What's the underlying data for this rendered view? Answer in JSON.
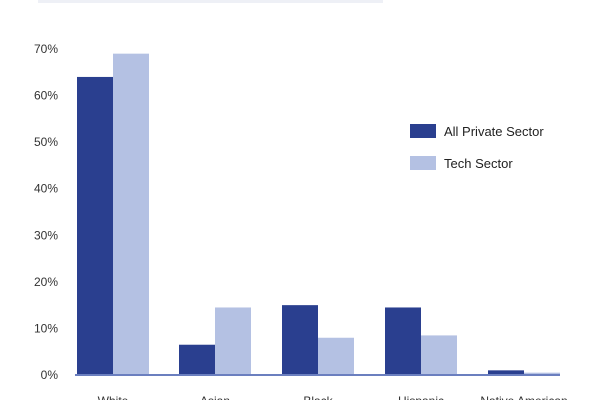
{
  "chart_data": {
    "type": "bar",
    "categories": [
      "White",
      "Asian",
      "Black",
      "Hispanic",
      "Native American"
    ],
    "series": [
      {
        "name": "All Private Sector",
        "values": [
          64,
          6.5,
          15,
          14.5,
          1
        ],
        "color": "#2a3f8f"
      },
      {
        "name": "Tech Sector",
        "values": [
          69,
          14.5,
          8,
          8.5,
          0.5
        ],
        "color": "#b4c1e3"
      }
    ],
    "yticks": [
      "0%",
      "10%",
      "20%",
      "30%",
      "40%",
      "50%",
      "60%",
      "70%"
    ],
    "ylim": [
      0,
      70
    ],
    "legend": "right",
    "grid": false,
    "axis_color": "#6b7fbf"
  }
}
